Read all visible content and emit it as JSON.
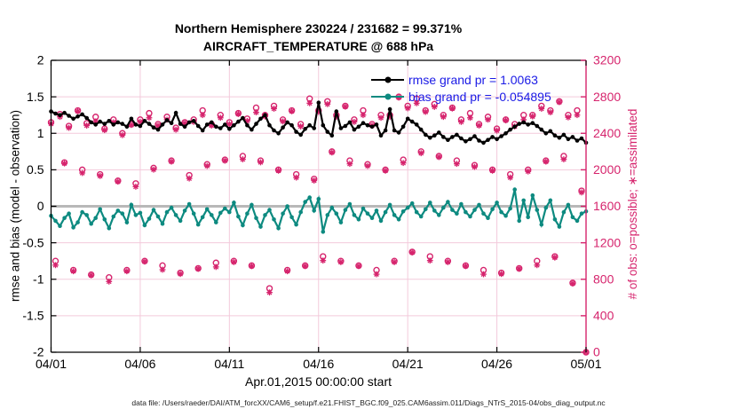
{
  "colors": {
    "obs_magenta": "#d6246d",
    "bias_teal": "#0d8a80",
    "rmse_black": "#000000",
    "legend_blue": "#1a1ae6",
    "grid_pink": "#f3cadb",
    "zero_gray": "#b8b8b8",
    "axis_black": "#000000"
  },
  "footer_text": "data file: /Users/raeder/DAI/ATM_forcXX/CAM6_setup/f.e21.FHIST_BGC.f09_025.CAM6assim.011/Diags_NTrS_2015-04/obs_diag_output.nc",
  "chart_data": {
    "type": "line",
    "title1": "Northern Hemisphere 230224 / 231682 = 99.371%",
    "title2": "AIRCRAFT_TEMPERATURE @ 688 hPa",
    "legend": [
      {
        "name": "rmse",
        "label": "rmse grand pr = 1.0063"
      },
      {
        "name": "bias",
        "label": "bias grand pr = -0.054895"
      }
    ],
    "x": {
      "label": "Apr.01,2015 00:00:00 start",
      "range": [
        0,
        30
      ],
      "step_days": 0.25,
      "ticks": [
        {
          "t": 0,
          "label": "04/01"
        },
        {
          "t": 5,
          "label": "04/06"
        },
        {
          "t": 10,
          "label": "04/11"
        },
        {
          "t": 15,
          "label": "04/16"
        },
        {
          "t": 20,
          "label": "04/21"
        },
        {
          "t": 25,
          "label": "04/26"
        },
        {
          "t": 30,
          "label": "05/01"
        }
      ]
    },
    "y_left": {
      "label": "rmse and bias (model - observation)",
      "range": [
        -2,
        2
      ],
      "ticks": [
        {
          "v": 2,
          "label": "2"
        },
        {
          "v": 1.5,
          "label": "1.5"
        },
        {
          "v": 1,
          "label": "1"
        },
        {
          "v": 0.5,
          "label": "0.5"
        },
        {
          "v": 0,
          "label": "0"
        },
        {
          "v": -0.5,
          "label": "-0.5"
        },
        {
          "v": -1,
          "label": "-1"
        },
        {
          "v": -1.5,
          "label": "-1.5"
        },
        {
          "v": -2,
          "label": "-2"
        }
      ]
    },
    "y_right": {
      "label": "# of obs: o=possible; ∗=assimilated",
      "range": [
        0,
        3200
      ],
      "ticks": [
        {
          "v": 3200,
          "label": "3200"
        },
        {
          "v": 2800,
          "label": "2800"
        },
        {
          "v": 2400,
          "label": "2400"
        },
        {
          "v": 2000,
          "label": "2000"
        },
        {
          "v": 1600,
          "label": "1600"
        },
        {
          "v": 1200,
          "label": "1200"
        },
        {
          "v": 800,
          "label": "800"
        },
        {
          "v": 400,
          "label": "400"
        },
        {
          "v": 0,
          "label": "0"
        }
      ]
    },
    "series": {
      "rmse": [
        1.3,
        1.27,
        1.25,
        1.28,
        1.24,
        1.2,
        1.23,
        1.26,
        1.21,
        1.15,
        1.12,
        1.16,
        1.13,
        1.17,
        1.12,
        1.15,
        1.13,
        1.09,
        1.2,
        1.12,
        1.1,
        1.17,
        1.13,
        1.08,
        1.05,
        1.12,
        1.18,
        1.14,
        1.28,
        1.13,
        1.09,
        1.15,
        1.17,
        1.1,
        1.04,
        1.12,
        1.15,
        1.09,
        1.07,
        1.12,
        1.06,
        1.11,
        1.16,
        1.21,
        1.11,
        1.05,
        1.13,
        1.2,
        1.25,
        1.11,
        1.04,
        1.0,
        1.08,
        1.15,
        1.11,
        1.02,
        0.98,
        1.06,
        1.11,
        1.07,
        1.42,
        1.11,
        1.02,
        0.97,
        1.3,
        1.07,
        1.1,
        1.15,
        1.05,
        1.09,
        1.14,
        1.11,
        1.09,
        1.12,
        0.97,
        1.04,
        1.33,
        1.04,
        1.01,
        1.09,
        1.2,
        1.16,
        1.12,
        1.05,
        0.98,
        0.94,
        0.97,
        1.01,
        0.95,
        0.91,
        0.95,
        0.98,
        0.93,
        0.89,
        0.92,
        0.96,
        0.9,
        0.87,
        0.91,
        0.95,
        0.92,
        0.96,
        1.0,
        1.05,
        1.09,
        1.13,
        1.15,
        1.12,
        1.14,
        1.1,
        1.05,
        1.0,
        1.03,
        0.97,
        0.94,
        0.98,
        0.92,
        0.95,
        0.9,
        0.93,
        0.87
      ],
      "bias": [
        -0.13,
        -0.2,
        -0.27,
        -0.16,
        -0.1,
        -0.29,
        -0.22,
        -0.08,
        -0.12,
        -0.24,
        -0.16,
        -0.04,
        -0.18,
        -0.3,
        -0.14,
        -0.06,
        -0.1,
        -0.22,
        0.02,
        -0.12,
        -0.09,
        -0.26,
        -0.17,
        -0.05,
        -0.14,
        -0.24,
        -0.08,
        -0.02,
        -0.12,
        -0.2,
        -0.06,
        0.03,
        -0.1,
        -0.25,
        -0.15,
        -0.04,
        -0.12,
        -0.22,
        -0.09,
        -0.03,
        -0.08,
        0.05,
        -0.14,
        -0.26,
        -0.1,
        0.02,
        -0.16,
        -0.28,
        -0.12,
        -0.05,
        -0.18,
        -0.3,
        -0.1,
        0.0,
        -0.15,
        -0.25,
        -0.08,
        0.06,
        0.12,
        -0.06,
        0.1,
        -0.35,
        -0.12,
        -0.02,
        -0.1,
        -0.22,
        -0.05,
        0.03,
        -0.12,
        -0.18,
        -0.03,
        -0.1,
        -0.16,
        -0.06,
        -0.2,
        -0.08,
        0.02,
        -0.12,
        -0.18,
        -0.07,
        -0.02,
        0.04,
        -0.08,
        -0.14,
        -0.04,
        0.05,
        -0.06,
        -0.12,
        -0.02,
        0.06,
        -0.05,
        -0.1,
        0.03,
        -0.08,
        -0.14,
        -0.05,
        0.02,
        -0.1,
        -0.16,
        -0.04,
        0.05,
        -0.08,
        -0.13,
        -0.03,
        0.23,
        -0.2,
        0.08,
        -0.15,
        0.15,
        -0.05,
        -0.25,
        -0.02,
        0.08,
        -0.18,
        -0.28,
        -0.08,
        0.02,
        -0.15,
        -0.2,
        -0.1,
        -0.07
      ],
      "obs_possible": [
        2520,
        1000,
        2610,
        2080,
        2480,
        900,
        2650,
        2000,
        2510,
        850,
        2580,
        1950,
        2450,
        820,
        2550,
        1880,
        2400,
        900,
        2500,
        1850,
        2550,
        1000,
        2620,
        2020,
        2500,
        950,
        2580,
        2100,
        2460,
        870,
        2520,
        1940,
        2550,
        920,
        2650,
        2060,
        2500,
        980,
        2600,
        2110,
        2520,
        1000,
        2620,
        2150,
        2560,
        950,
        2680,
        2100,
        2600,
        700,
        2700,
        2000,
        2550,
        900,
        2650,
        1950,
        2500,
        950,
        2780,
        1900,
        2650,
        1050,
        2750,
        2200,
        2600,
        1000,
        2700,
        2100,
        2550,
        950,
        2650,
        2060,
        2500,
        900,
        2600,
        2000,
        2600,
        1000,
        2800,
        2110,
        2700,
        1100,
        2780,
        2200,
        2650,
        1050,
        2720,
        2150,
        2600,
        1000,
        2680,
        2100,
        2550,
        950,
        2620,
        2050,
        2500,
        900,
        2580,
        2000,
        2450,
        870,
        2550,
        1950,
        2500,
        920,
        2600,
        2000,
        2600,
        1000,
        2700,
        2100,
        2650,
        1050,
        2750,
        2150,
        2600,
        760,
        2650,
        1770,
        0
      ],
      "obs_assimilated": [
        2505,
        955,
        2580,
        2070,
        2460,
        888,
        2642,
        1965,
        2485,
        844,
        2530,
        1932,
        2435,
        775,
        2520,
        1870,
        2380,
        888,
        2492,
        1815,
        2525,
        994,
        2570,
        2002,
        2485,
        905,
        2550,
        2090,
        2440,
        858,
        2512,
        1905,
        2525,
        914,
        2600,
        2042,
        2485,
        935,
        2570,
        2100,
        2500,
        988,
        2612,
        2115,
        2535,
        944,
        2630,
        2082,
        2585,
        655,
        2670,
        1990,
        2530,
        888,
        2642,
        1915,
        2475,
        944,
        2730,
        1882,
        2635,
        1005,
        2720,
        2190,
        2580,
        988,
        2692,
        2065,
        2525,
        944,
        2600,
        2042,
        2485,
        855,
        2570,
        1990,
        2580,
        988,
        2792,
        2075,
        2675,
        1094,
        2730,
        2182,
        2635,
        1005,
        2690,
        2140,
        2580,
        988,
        2672,
        2065,
        2525,
        944,
        2570,
        2032,
        2485,
        855,
        2550,
        1990,
        2430,
        858,
        2542,
        1915,
        2475,
        914,
        2550,
        1982,
        2585,
        955,
        2670,
        2090,
        2630,
        1038,
        2742,
        2115,
        2575,
        754,
        2600,
        1752,
        0
      ]
    },
    "grid": true,
    "legend_position": "top-right-inside"
  }
}
